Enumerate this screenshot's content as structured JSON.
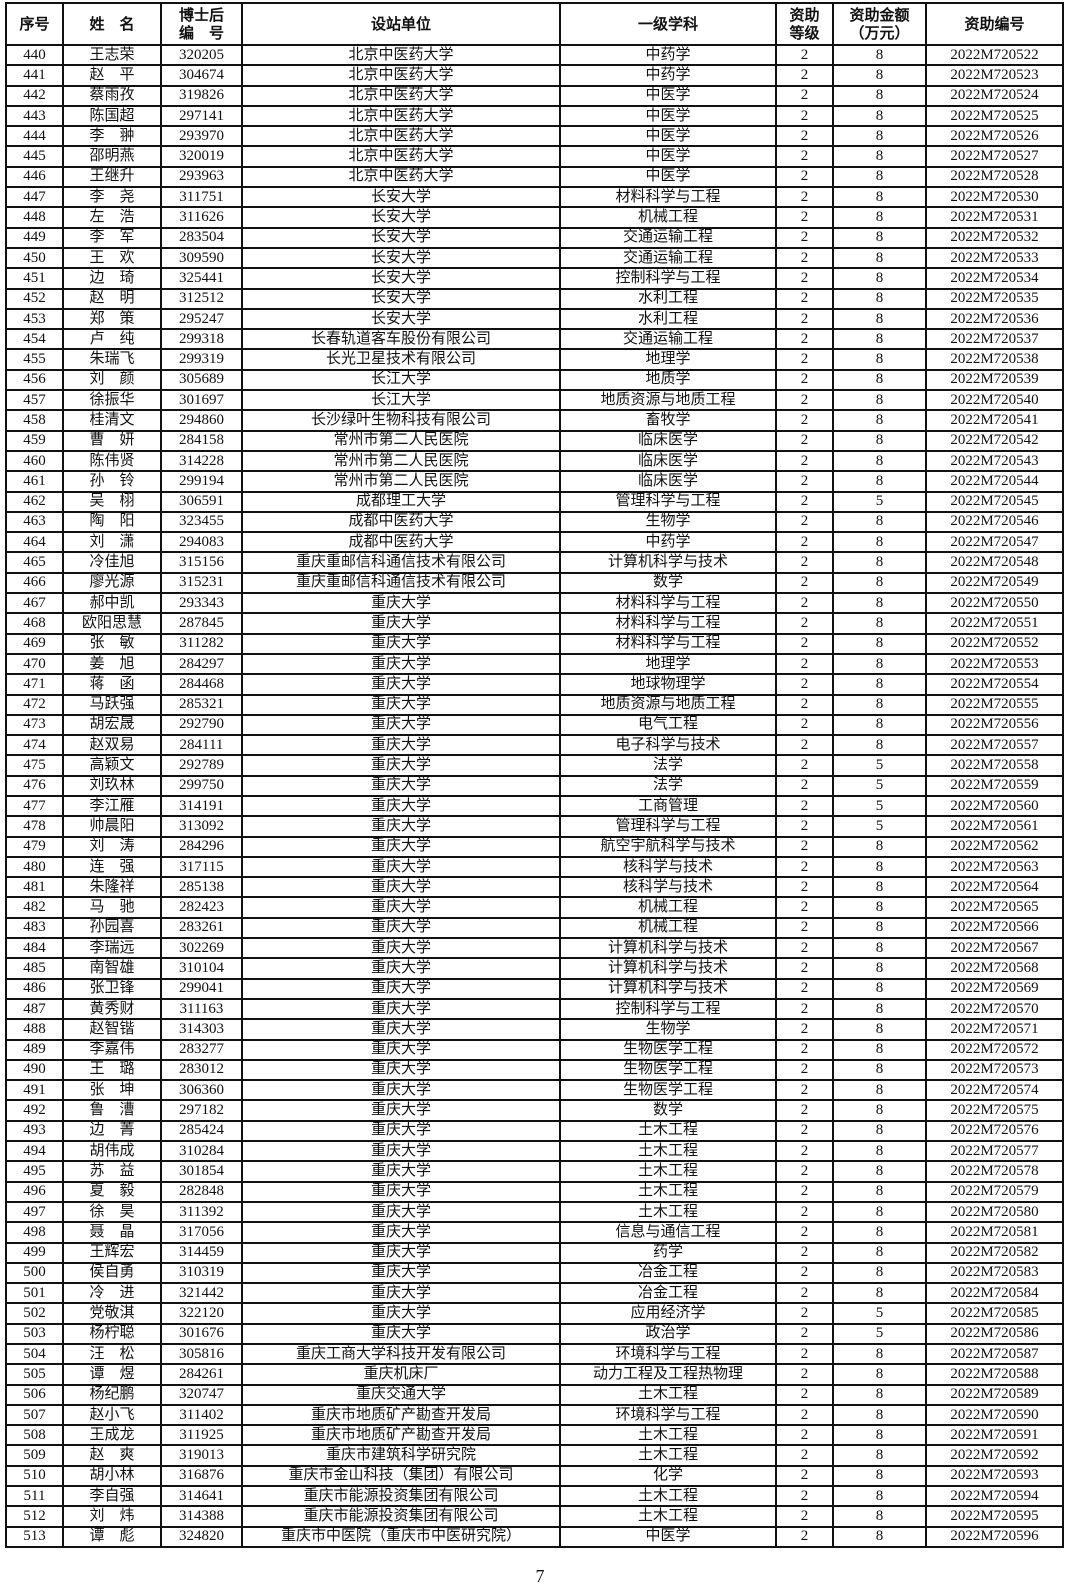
{
  "headers": [
    "序号",
    "姓　名",
    "博士后\n编　号",
    "设站单位",
    "一级学科",
    "资助\n等级",
    "资助金额\n（万元）",
    "资助编号"
  ],
  "rows": [
    [
      "440",
      "王志荣",
      "320205",
      "北京中医药大学",
      "中药学",
      "2",
      "8",
      "2022M720522"
    ],
    [
      "441",
      "赵　平",
      "304674",
      "北京中医药大学",
      "中药学",
      "2",
      "8",
      "2022M720523"
    ],
    [
      "442",
      "蔡雨孜",
      "319826",
      "北京中医药大学",
      "中医学",
      "2",
      "8",
      "2022M720524"
    ],
    [
      "443",
      "陈国超",
      "297141",
      "北京中医药大学",
      "中医学",
      "2",
      "8",
      "2022M720525"
    ],
    [
      "444",
      "李　翀",
      "293970",
      "北京中医药大学",
      "中医学",
      "2",
      "8",
      "2022M720526"
    ],
    [
      "445",
      "邵明燕",
      "320019",
      "北京中医药大学",
      "中医学",
      "2",
      "8",
      "2022M720527"
    ],
    [
      "446",
      "王继升",
      "293963",
      "北京中医药大学",
      "中医学",
      "2",
      "8",
      "2022M720528"
    ],
    [
      "447",
      "李　尧",
      "311751",
      "长安大学",
      "材料科学与工程",
      "2",
      "8",
      "2022M720530"
    ],
    [
      "448",
      "左　浩",
      "311626",
      "长安大学",
      "机械工程",
      "2",
      "8",
      "2022M720531"
    ],
    [
      "449",
      "李　军",
      "283504",
      "长安大学",
      "交通运输工程",
      "2",
      "8",
      "2022M720532"
    ],
    [
      "450",
      "王　欢",
      "309590",
      "长安大学",
      "交通运输工程",
      "2",
      "8",
      "2022M720533"
    ],
    [
      "451",
      "边　琦",
      "325441",
      "长安大学",
      "控制科学与工程",
      "2",
      "8",
      "2022M720534"
    ],
    [
      "452",
      "赵　明",
      "312512",
      "长安大学",
      "水利工程",
      "2",
      "8",
      "2022M720535"
    ],
    [
      "453",
      "郑　策",
      "295247",
      "长安大学",
      "水利工程",
      "2",
      "8",
      "2022M720536"
    ],
    [
      "454",
      "卢　纯",
      "299318",
      "长春轨道客车股份有限公司",
      "交通运输工程",
      "2",
      "8",
      "2022M720537"
    ],
    [
      "455",
      "朱瑞飞",
      "299319",
      "长光卫星技术有限公司",
      "地理学",
      "2",
      "8",
      "2022M720538"
    ],
    [
      "456",
      "刘　颜",
      "305689",
      "长江大学",
      "地质学",
      "2",
      "8",
      "2022M720539"
    ],
    [
      "457",
      "徐振华",
      "301697",
      "长江大学",
      "地质资源与地质工程",
      "2",
      "8",
      "2022M720540"
    ],
    [
      "458",
      "桂清文",
      "294860",
      "长沙绿叶生物科技有限公司",
      "畜牧学",
      "2",
      "8",
      "2022M720541"
    ],
    [
      "459",
      "曹　妍",
      "284158",
      "常州市第二人民医院",
      "临床医学",
      "2",
      "8",
      "2022M720542"
    ],
    [
      "460",
      "陈伟贤",
      "314228",
      "常州市第二人民医院",
      "临床医学",
      "2",
      "8",
      "2022M720543"
    ],
    [
      "461",
      "孙　铃",
      "299194",
      "常州市第二人民医院",
      "临床医学",
      "2",
      "8",
      "2022M720544"
    ],
    [
      "462",
      "吴　栩",
      "306591",
      "成都理工大学",
      "管理科学与工程",
      "2",
      "5",
      "2022M720545"
    ],
    [
      "463",
      "陶　阳",
      "323455",
      "成都中医药大学",
      "生物学",
      "2",
      "8",
      "2022M720546"
    ],
    [
      "464",
      "刘　潇",
      "294083",
      "成都中医药大学",
      "中药学",
      "2",
      "8",
      "2022M720547"
    ],
    [
      "465",
      "冷佳旭",
      "315156",
      "重庆重邮信科通信技术有限公司",
      "计算机科学与技术",
      "2",
      "8",
      "2022M720548"
    ],
    [
      "466",
      "廖光源",
      "315231",
      "重庆重邮信科通信技术有限公司",
      "数学",
      "2",
      "8",
      "2022M720549"
    ],
    [
      "467",
      "郝中凯",
      "293343",
      "重庆大学",
      "材料科学与工程",
      "2",
      "8",
      "2022M720550"
    ],
    [
      "468",
      "欧阳思慧",
      "287845",
      "重庆大学",
      "材料科学与工程",
      "2",
      "8",
      "2022M720551"
    ],
    [
      "469",
      "张　敏",
      "311282",
      "重庆大学",
      "材料科学与工程",
      "2",
      "8",
      "2022M720552"
    ],
    [
      "470",
      "姜　旭",
      "284297",
      "重庆大学",
      "地理学",
      "2",
      "8",
      "2022M720553"
    ],
    [
      "471",
      "蒋　函",
      "284468",
      "重庆大学",
      "地球物理学",
      "2",
      "8",
      "2022M720554"
    ],
    [
      "472",
      "马跃强",
      "285321",
      "重庆大学",
      "地质资源与地质工程",
      "2",
      "8",
      "2022M720555"
    ],
    [
      "473",
      "胡宏晟",
      "292790",
      "重庆大学",
      "电气工程",
      "2",
      "8",
      "2022M720556"
    ],
    [
      "474",
      "赵双易",
      "284111",
      "重庆大学",
      "电子科学与技术",
      "2",
      "8",
      "2022M720557"
    ],
    [
      "475",
      "高颖文",
      "292789",
      "重庆大学",
      "法学",
      "2",
      "5",
      "2022M720558"
    ],
    [
      "476",
      "刘玖林",
      "299750",
      "重庆大学",
      "法学",
      "2",
      "5",
      "2022M720559"
    ],
    [
      "477",
      "李江雁",
      "314191",
      "重庆大学",
      "工商管理",
      "2",
      "5",
      "2022M720560"
    ],
    [
      "478",
      "帅晨阳",
      "313092",
      "重庆大学",
      "管理科学与工程",
      "2",
      "5",
      "2022M720561"
    ],
    [
      "479",
      "刘　涛",
      "284296",
      "重庆大学",
      "航空宇航科学与技术",
      "2",
      "8",
      "2022M720562"
    ],
    [
      "480",
      "连　强",
      "317115",
      "重庆大学",
      "核科学与技术",
      "2",
      "8",
      "2022M720563"
    ],
    [
      "481",
      "朱隆祥",
      "285138",
      "重庆大学",
      "核科学与技术",
      "2",
      "8",
      "2022M720564"
    ],
    [
      "482",
      "马　驰",
      "282423",
      "重庆大学",
      "机械工程",
      "2",
      "8",
      "2022M720565"
    ],
    [
      "483",
      "孙园喜",
      "283261",
      "重庆大学",
      "机械工程",
      "2",
      "8",
      "2022M720566"
    ],
    [
      "484",
      "李瑞远",
      "302269",
      "重庆大学",
      "计算机科学与技术",
      "2",
      "8",
      "2022M720567"
    ],
    [
      "485",
      "南智雄",
      "310104",
      "重庆大学",
      "计算机科学与技术",
      "2",
      "8",
      "2022M720568"
    ],
    [
      "486",
      "张卫锋",
      "299041",
      "重庆大学",
      "计算机科学与技术",
      "2",
      "8",
      "2022M720569"
    ],
    [
      "487",
      "黄秀财",
      "311163",
      "重庆大学",
      "控制科学与工程",
      "2",
      "8",
      "2022M720570"
    ],
    [
      "488",
      "赵智锴",
      "314303",
      "重庆大学",
      "生物学",
      "2",
      "8",
      "2022M720571"
    ],
    [
      "489",
      "李嘉伟",
      "283277",
      "重庆大学",
      "生物医学工程",
      "2",
      "8",
      "2022M720572"
    ],
    [
      "490",
      "王　璐",
      "283012",
      "重庆大学",
      "生物医学工程",
      "2",
      "8",
      "2022M720573"
    ],
    [
      "491",
      "张　坤",
      "306360",
      "重庆大学",
      "生物医学工程",
      "2",
      "8",
      "2022M720574"
    ],
    [
      "492",
      "鲁　漕",
      "297182",
      "重庆大学",
      "数学",
      "2",
      "8",
      "2022M720575"
    ],
    [
      "493",
      "边　菁",
      "285424",
      "重庆大学",
      "土木工程",
      "2",
      "8",
      "2022M720576"
    ],
    [
      "494",
      "胡伟成",
      "310284",
      "重庆大学",
      "土木工程",
      "2",
      "8",
      "2022M720577"
    ],
    [
      "495",
      "苏　益",
      "301854",
      "重庆大学",
      "土木工程",
      "2",
      "8",
      "2022M720578"
    ],
    [
      "496",
      "夏　毅",
      "282848",
      "重庆大学",
      "土木工程",
      "2",
      "8",
      "2022M720579"
    ],
    [
      "497",
      "徐　昊",
      "311392",
      "重庆大学",
      "土木工程",
      "2",
      "8",
      "2022M720580"
    ],
    [
      "498",
      "聂　晶",
      "317056",
      "重庆大学",
      "信息与通信工程",
      "2",
      "8",
      "2022M720581"
    ],
    [
      "499",
      "王辉宏",
      "314459",
      "重庆大学",
      "药学",
      "2",
      "8",
      "2022M720582"
    ],
    [
      "500",
      "侯自勇",
      "310319",
      "重庆大学",
      "冶金工程",
      "2",
      "8",
      "2022M720583"
    ],
    [
      "501",
      "冷　进",
      "321442",
      "重庆大学",
      "冶金工程",
      "2",
      "8",
      "2022M720584"
    ],
    [
      "502",
      "党敬淇",
      "322120",
      "重庆大学",
      "应用经济学",
      "2",
      "5",
      "2022M720585"
    ],
    [
      "503",
      "杨柠聪",
      "301676",
      "重庆大学",
      "政治学",
      "2",
      "5",
      "2022M720586"
    ],
    [
      "504",
      "汪　松",
      "305816",
      "重庆工商大学科技开发有限公司",
      "环境科学与工程",
      "2",
      "8",
      "2022M720587"
    ],
    [
      "505",
      "谭　煜",
      "284261",
      "重庆机床厂",
      "动力工程及工程热物理",
      "2",
      "8",
      "2022M720588"
    ],
    [
      "506",
      "杨纪鹏",
      "320747",
      "重庆交通大学",
      "土木工程",
      "2",
      "8",
      "2022M720589"
    ],
    [
      "507",
      "赵小飞",
      "311402",
      "重庆市地质矿产勘查开发局",
      "环境科学与工程",
      "2",
      "8",
      "2022M720590"
    ],
    [
      "508",
      "王成龙",
      "311925",
      "重庆市地质矿产勘查开发局",
      "土木工程",
      "2",
      "8",
      "2022M720591"
    ],
    [
      "509",
      "赵　爽",
      "319013",
      "重庆市建筑科学研究院",
      "土木工程",
      "2",
      "8",
      "2022M720592"
    ],
    [
      "510",
      "胡小林",
      "316876",
      "重庆市金山科技（集团）有限公司",
      "化学",
      "2",
      "8",
      "2022M720593"
    ],
    [
      "511",
      "李自强",
      "314641",
      "重庆市能源投资集团有限公司",
      "土木工程",
      "2",
      "8",
      "2022M720594"
    ],
    [
      "512",
      "刘　炜",
      "314388",
      "重庆市能源投资集团有限公司",
      "土木工程",
      "2",
      "8",
      "2022M720595"
    ],
    [
      "513",
      "谭　彪",
      "324820",
      "重庆市中医院（重庆市中医研究院）",
      "中医学",
      "2",
      "8",
      "2022M720596"
    ]
  ],
  "page_number": "7"
}
